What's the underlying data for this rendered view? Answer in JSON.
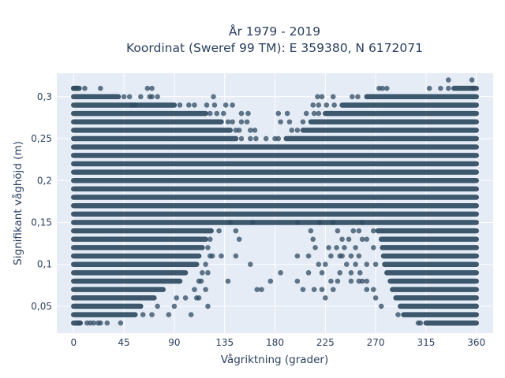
{
  "chart_data": {
    "type": "scatter",
    "title_lines": [
      "År 1979 - 2019",
      "Koordinat (Sweref 99 TM): E 359380, N 6172071"
    ],
    "xlabel": "Vågriktning (grader)",
    "ylabel": "Signifikant våghöjd (m)",
    "xlim": [
      -15,
      375
    ],
    "ylim": [
      0.018,
      0.328
    ],
    "x_ticks": [
      0,
      45,
      90,
      135,
      180,
      225,
      270,
      315,
      360
    ],
    "x_tick_labels": [
      "0",
      "45",
      "90",
      "135",
      "180",
      "225",
      "270",
      "315",
      "360"
    ],
    "y_ticks": [
      0.05,
      0.1,
      0.15,
      0.2,
      0.25,
      0.3
    ],
    "y_tick_labels": [
      "0,05",
      "0,1",
      "0,15",
      "0,2",
      "0,25",
      "0,3"
    ],
    "grid": true,
    "marker_color": "#2f4b62",
    "background_color": "#e5ecf6",
    "bands": [
      {
        "y": 0.03,
        "segments": [
          [
            0,
            6
          ],
          [
            315,
            360
          ]
        ]
      },
      {
        "y": 0.04,
        "segments": [
          [
            0,
            55
          ],
          [
            295,
            360
          ]
        ]
      },
      {
        "y": 0.05,
        "segments": [
          [
            0,
            60
          ],
          [
            292,
            360
          ]
        ]
      },
      {
        "y": 0.06,
        "segments": [
          [
            0,
            72
          ],
          [
            288,
            360
          ]
        ]
      },
      {
        "y": 0.07,
        "segments": [
          [
            0,
            80
          ],
          [
            285,
            360
          ]
        ]
      },
      {
        "y": 0.08,
        "segments": [
          [
            0,
            95
          ],
          [
            283,
            360
          ]
        ]
      },
      {
        "y": 0.09,
        "segments": [
          [
            0,
            100
          ],
          [
            280,
            360
          ]
        ]
      },
      {
        "y": 0.1,
        "segments": [
          [
            0,
            110
          ],
          [
            278,
            360
          ]
        ]
      },
      {
        "y": 0.11,
        "segments": [
          [
            0,
            112
          ],
          [
            277,
            360
          ]
        ]
      },
      {
        "y": 0.12,
        "segments": [
          [
            0,
            115
          ],
          [
            276,
            360
          ]
        ]
      },
      {
        "y": 0.13,
        "segments": [
          [
            0,
            118
          ],
          [
            275,
            360
          ]
        ]
      },
      {
        "y": 0.14,
        "segments": [
          [
            0,
            123
          ],
          [
            272,
            360
          ]
        ]
      },
      {
        "y": 0.15,
        "segments": [
          [
            0,
            360
          ]
        ]
      },
      {
        "y": 0.16,
        "segments": [
          [
            0,
            360
          ]
        ]
      },
      {
        "y": 0.17,
        "segments": [
          [
            0,
            360
          ]
        ]
      },
      {
        "y": 0.18,
        "segments": [
          [
            0,
            360
          ]
        ]
      },
      {
        "y": 0.19,
        "segments": [
          [
            0,
            360
          ]
        ]
      },
      {
        "y": 0.2,
        "segments": [
          [
            0,
            360
          ]
        ]
      },
      {
        "y": 0.21,
        "segments": [
          [
            0,
            360
          ]
        ]
      },
      {
        "y": 0.22,
        "segments": [
          [
            0,
            360
          ]
        ]
      },
      {
        "y": 0.23,
        "segments": [
          [
            0,
            360
          ]
        ]
      },
      {
        "y": 0.24,
        "segments": [
          [
            0,
            360
          ]
        ]
      },
      {
        "y": 0.25,
        "segments": [
          [
            0,
            145
          ],
          [
            190,
            360
          ]
        ]
      },
      {
        "y": 0.26,
        "segments": [
          [
            0,
            140
          ],
          [
            205,
            360
          ]
        ]
      },
      {
        "y": 0.27,
        "segments": [
          [
            0,
            132
          ],
          [
            212,
            360
          ]
        ]
      },
      {
        "y": 0.28,
        "segments": [
          [
            0,
            118
          ],
          [
            225,
            360
          ]
        ]
      },
      {
        "y": 0.29,
        "segments": [
          [
            0,
            90
          ],
          [
            240,
            360
          ]
        ]
      },
      {
        "y": 0.3,
        "segments": [
          [
            0,
            40
          ],
          [
            262,
            360
          ]
        ]
      },
      {
        "y": 0.31,
        "segments": [
          [
            0,
            5
          ],
          [
            340,
            360
          ]
        ]
      }
    ],
    "outliers": [
      [
        5,
        0.03
      ],
      [
        12,
        0.03
      ],
      [
        15,
        0.03
      ],
      [
        18,
        0.03
      ],
      [
        22,
        0.03
      ],
      [
        24,
        0.03
      ],
      [
        30,
        0.03
      ],
      [
        42,
        0.03
      ],
      [
        308,
        0.03
      ],
      [
        310,
        0.03
      ],
      [
        62,
        0.04
      ],
      [
        70,
        0.04
      ],
      [
        85,
        0.04
      ],
      [
        105,
        0.04
      ],
      [
        290,
        0.04
      ],
      [
        75,
        0.05
      ],
      [
        90,
        0.05
      ],
      [
        120,
        0.05
      ],
      [
        275,
        0.05
      ],
      [
        92,
        0.06
      ],
      [
        100,
        0.06
      ],
      [
        110,
        0.06
      ],
      [
        112,
        0.06
      ],
      [
        225,
        0.06
      ],
      [
        270,
        0.06
      ],
      [
        108,
        0.07
      ],
      [
        118,
        0.07
      ],
      [
        164,
        0.07
      ],
      [
        168,
        0.07
      ],
      [
        205,
        0.07
      ],
      [
        215,
        0.07
      ],
      [
        222,
        0.07
      ],
      [
        232,
        0.07
      ],
      [
        262,
        0.07
      ],
      [
        268,
        0.07
      ],
      [
        112,
        0.08
      ],
      [
        114,
        0.08
      ],
      [
        138,
        0.08
      ],
      [
        176,
        0.08
      ],
      [
        200,
        0.08
      ],
      [
        230,
        0.08
      ],
      [
        236,
        0.08
      ],
      [
        248,
        0.08
      ],
      [
        255,
        0.08
      ],
      [
        258,
        0.08
      ],
      [
        262,
        0.08
      ],
      [
        115,
        0.09
      ],
      [
        120,
        0.09
      ],
      [
        185,
        0.09
      ],
      [
        210,
        0.09
      ],
      [
        222,
        0.09
      ],
      [
        238,
        0.09
      ],
      [
        248,
        0.09
      ],
      [
        256,
        0.09
      ],
      [
        118,
        0.1
      ],
      [
        158,
        0.1
      ],
      [
        219,
        0.1
      ],
      [
        225,
        0.1
      ],
      [
        244,
        0.1
      ],
      [
        252,
        0.1
      ],
      [
        262,
        0.1
      ],
      [
        270,
        0.1
      ],
      [
        122,
        0.11
      ],
      [
        124,
        0.11
      ],
      [
        132,
        0.11
      ],
      [
        145,
        0.11
      ],
      [
        200,
        0.11
      ],
      [
        210,
        0.11
      ],
      [
        230,
        0.11
      ],
      [
        238,
        0.11
      ],
      [
        240,
        0.11
      ],
      [
        248,
        0.11
      ],
      [
        255,
        0.11
      ],
      [
        120,
        0.12
      ],
      [
        216,
        0.12
      ],
      [
        228,
        0.12
      ],
      [
        235,
        0.12
      ],
      [
        242,
        0.12
      ],
      [
        252,
        0.12
      ],
      [
        268,
        0.12
      ],
      [
        122,
        0.13
      ],
      [
        148,
        0.13
      ],
      [
        214,
        0.13
      ],
      [
        240,
        0.13
      ],
      [
        246,
        0.13
      ],
      [
        258,
        0.13
      ],
      [
        262,
        0.13
      ],
      [
        130,
        0.14
      ],
      [
        145,
        0.14
      ],
      [
        212,
        0.14
      ],
      [
        236,
        0.14
      ],
      [
        250,
        0.14
      ],
      [
        255,
        0.14
      ],
      [
        268,
        0.14
      ],
      [
        140,
        0.15
      ],
      [
        160,
        0.15
      ],
      [
        200,
        0.15
      ],
      [
        220,
        0.15
      ],
      [
        232,
        0.15
      ],
      [
        258,
        0.15
      ],
      [
        150,
        0.25
      ],
      [
        158,
        0.25
      ],
      [
        163,
        0.25
      ],
      [
        172,
        0.25
      ],
      [
        180,
        0.25
      ],
      [
        183,
        0.25
      ],
      [
        145,
        0.26
      ],
      [
        148,
        0.26
      ],
      [
        158,
        0.26
      ],
      [
        162,
        0.26
      ],
      [
        195,
        0.26
      ],
      [
        200,
        0.26
      ],
      [
        138,
        0.27
      ],
      [
        142,
        0.27
      ],
      [
        150,
        0.27
      ],
      [
        155,
        0.27
      ],
      [
        185,
        0.27
      ],
      [
        193,
        0.27
      ],
      [
        205,
        0.27
      ],
      [
        122,
        0.28
      ],
      [
        128,
        0.28
      ],
      [
        134,
        0.28
      ],
      [
        150,
        0.28
      ],
      [
        156,
        0.28
      ],
      [
        183,
        0.28
      ],
      [
        191,
        0.28
      ],
      [
        208,
        0.28
      ],
      [
        215,
        0.28
      ],
      [
        219,
        0.28
      ],
      [
        52,
        0.29
      ],
      [
        55,
        0.29
      ],
      [
        95,
        0.29
      ],
      [
        103,
        0.29
      ],
      [
        108,
        0.29
      ],
      [
        119,
        0.29
      ],
      [
        126,
        0.29
      ],
      [
        136,
        0.29
      ],
      [
        142,
        0.29
      ],
      [
        214,
        0.29
      ],
      [
        219,
        0.29
      ],
      [
        226,
        0.29
      ],
      [
        233,
        0.29
      ],
      [
        45,
        0.3
      ],
      [
        50,
        0.3
      ],
      [
        60,
        0.3
      ],
      [
        68,
        0.3
      ],
      [
        70,
        0.3
      ],
      [
        75,
        0.3
      ],
      [
        125,
        0.3
      ],
      [
        218,
        0.3
      ],
      [
        222,
        0.3
      ],
      [
        232,
        0.3
      ],
      [
        249,
        0.3
      ],
      [
        254,
        0.3
      ],
      [
        0,
        0.31
      ],
      [
        3,
        0.31
      ],
      [
        10,
        0.31
      ],
      [
        24,
        0.31
      ],
      [
        66,
        0.31
      ],
      [
        70,
        0.31
      ],
      [
        273,
        0.31
      ],
      [
        276,
        0.31
      ],
      [
        280,
        0.31
      ],
      [
        318,
        0.31
      ],
      [
        328,
        0.31
      ],
      [
        335,
        0.31
      ],
      [
        357,
        0.31
      ],
      [
        335,
        0.32
      ],
      [
        356,
        0.32
      ]
    ]
  }
}
